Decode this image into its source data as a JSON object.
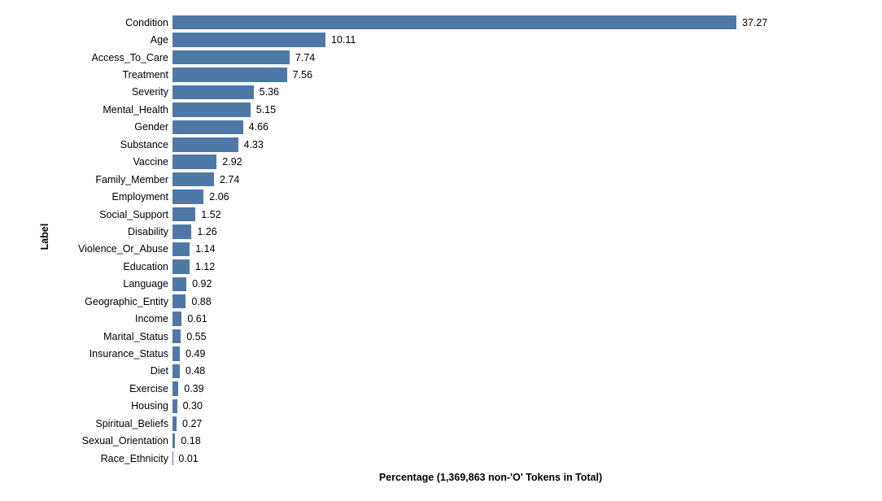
{
  "chart_data": {
    "type": "bar",
    "orientation": "horizontal",
    "title": "",
    "xlabel": "Percentage (1,369,863 non-'O' Tokens in Total)",
    "ylabel": "Label",
    "categories": [
      "Condition",
      "Age",
      "Access_To_Care",
      "Treatment",
      "Severity",
      "Mental_Health",
      "Gender",
      "Substance",
      "Vaccine",
      "Family_Member",
      "Employment",
      "Social_Support",
      "Disability",
      "Violence_Or_Abuse",
      "Education",
      "Language",
      "Geographic_Entity",
      "Income",
      "Marital_Status",
      "Insurance_Status",
      "Diet",
      "Exercise",
      "Housing",
      "Spiritual_Beliefs",
      "Sexual_Orientation",
      "Race_Ethnicity"
    ],
    "values": [
      37.27,
      10.11,
      7.74,
      7.56,
      5.36,
      5.15,
      4.66,
      4.33,
      2.92,
      2.74,
      2.06,
      1.52,
      1.26,
      1.14,
      1.12,
      0.92,
      0.88,
      0.61,
      0.55,
      0.49,
      0.48,
      0.39,
      0.3,
      0.27,
      0.18,
      0.01
    ],
    "value_label_decimals": 2,
    "xlim": [
      0,
      40
    ],
    "bar_color": "#4e79a7",
    "text_color": "#000000",
    "background_color": "#ffffff",
    "grid": false,
    "legend": false,
    "value_labels_shown": true
  }
}
